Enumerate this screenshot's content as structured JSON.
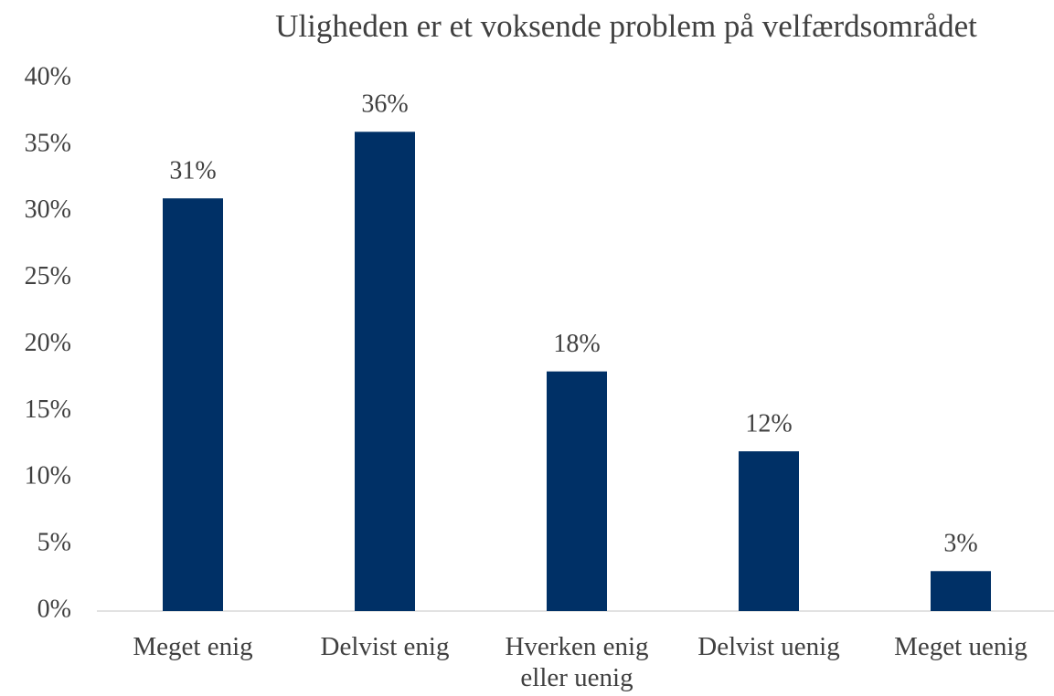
{
  "chart_data": {
    "type": "bar",
    "title": "Uligheden er et voksende problem på velfærdsområdet",
    "categories": [
      "Meget enig",
      "Delvist enig",
      "Hverken enig eller uenig",
      "Delvist uenig",
      "Meget uenig"
    ],
    "values": [
      31,
      36,
      18,
      12,
      3
    ],
    "value_labels": [
      "31%",
      "36%",
      "18%",
      "12%",
      "3%"
    ],
    "color": "#003066",
    "ylim": [
      0,
      40
    ],
    "yticks": [
      {
        "value": 0,
        "label": "0%"
      },
      {
        "value": 5,
        "label": "5%"
      },
      {
        "value": 10,
        "label": "10%"
      },
      {
        "value": 15,
        "label": "15%"
      },
      {
        "value": 20,
        "label": "20%"
      },
      {
        "value": 25,
        "label": "25%"
      },
      {
        "value": 30,
        "label": "30%"
      },
      {
        "value": 35,
        "label": "35%"
      },
      {
        "value": 40,
        "label": "40%"
      }
    ],
    "grid": false
  }
}
